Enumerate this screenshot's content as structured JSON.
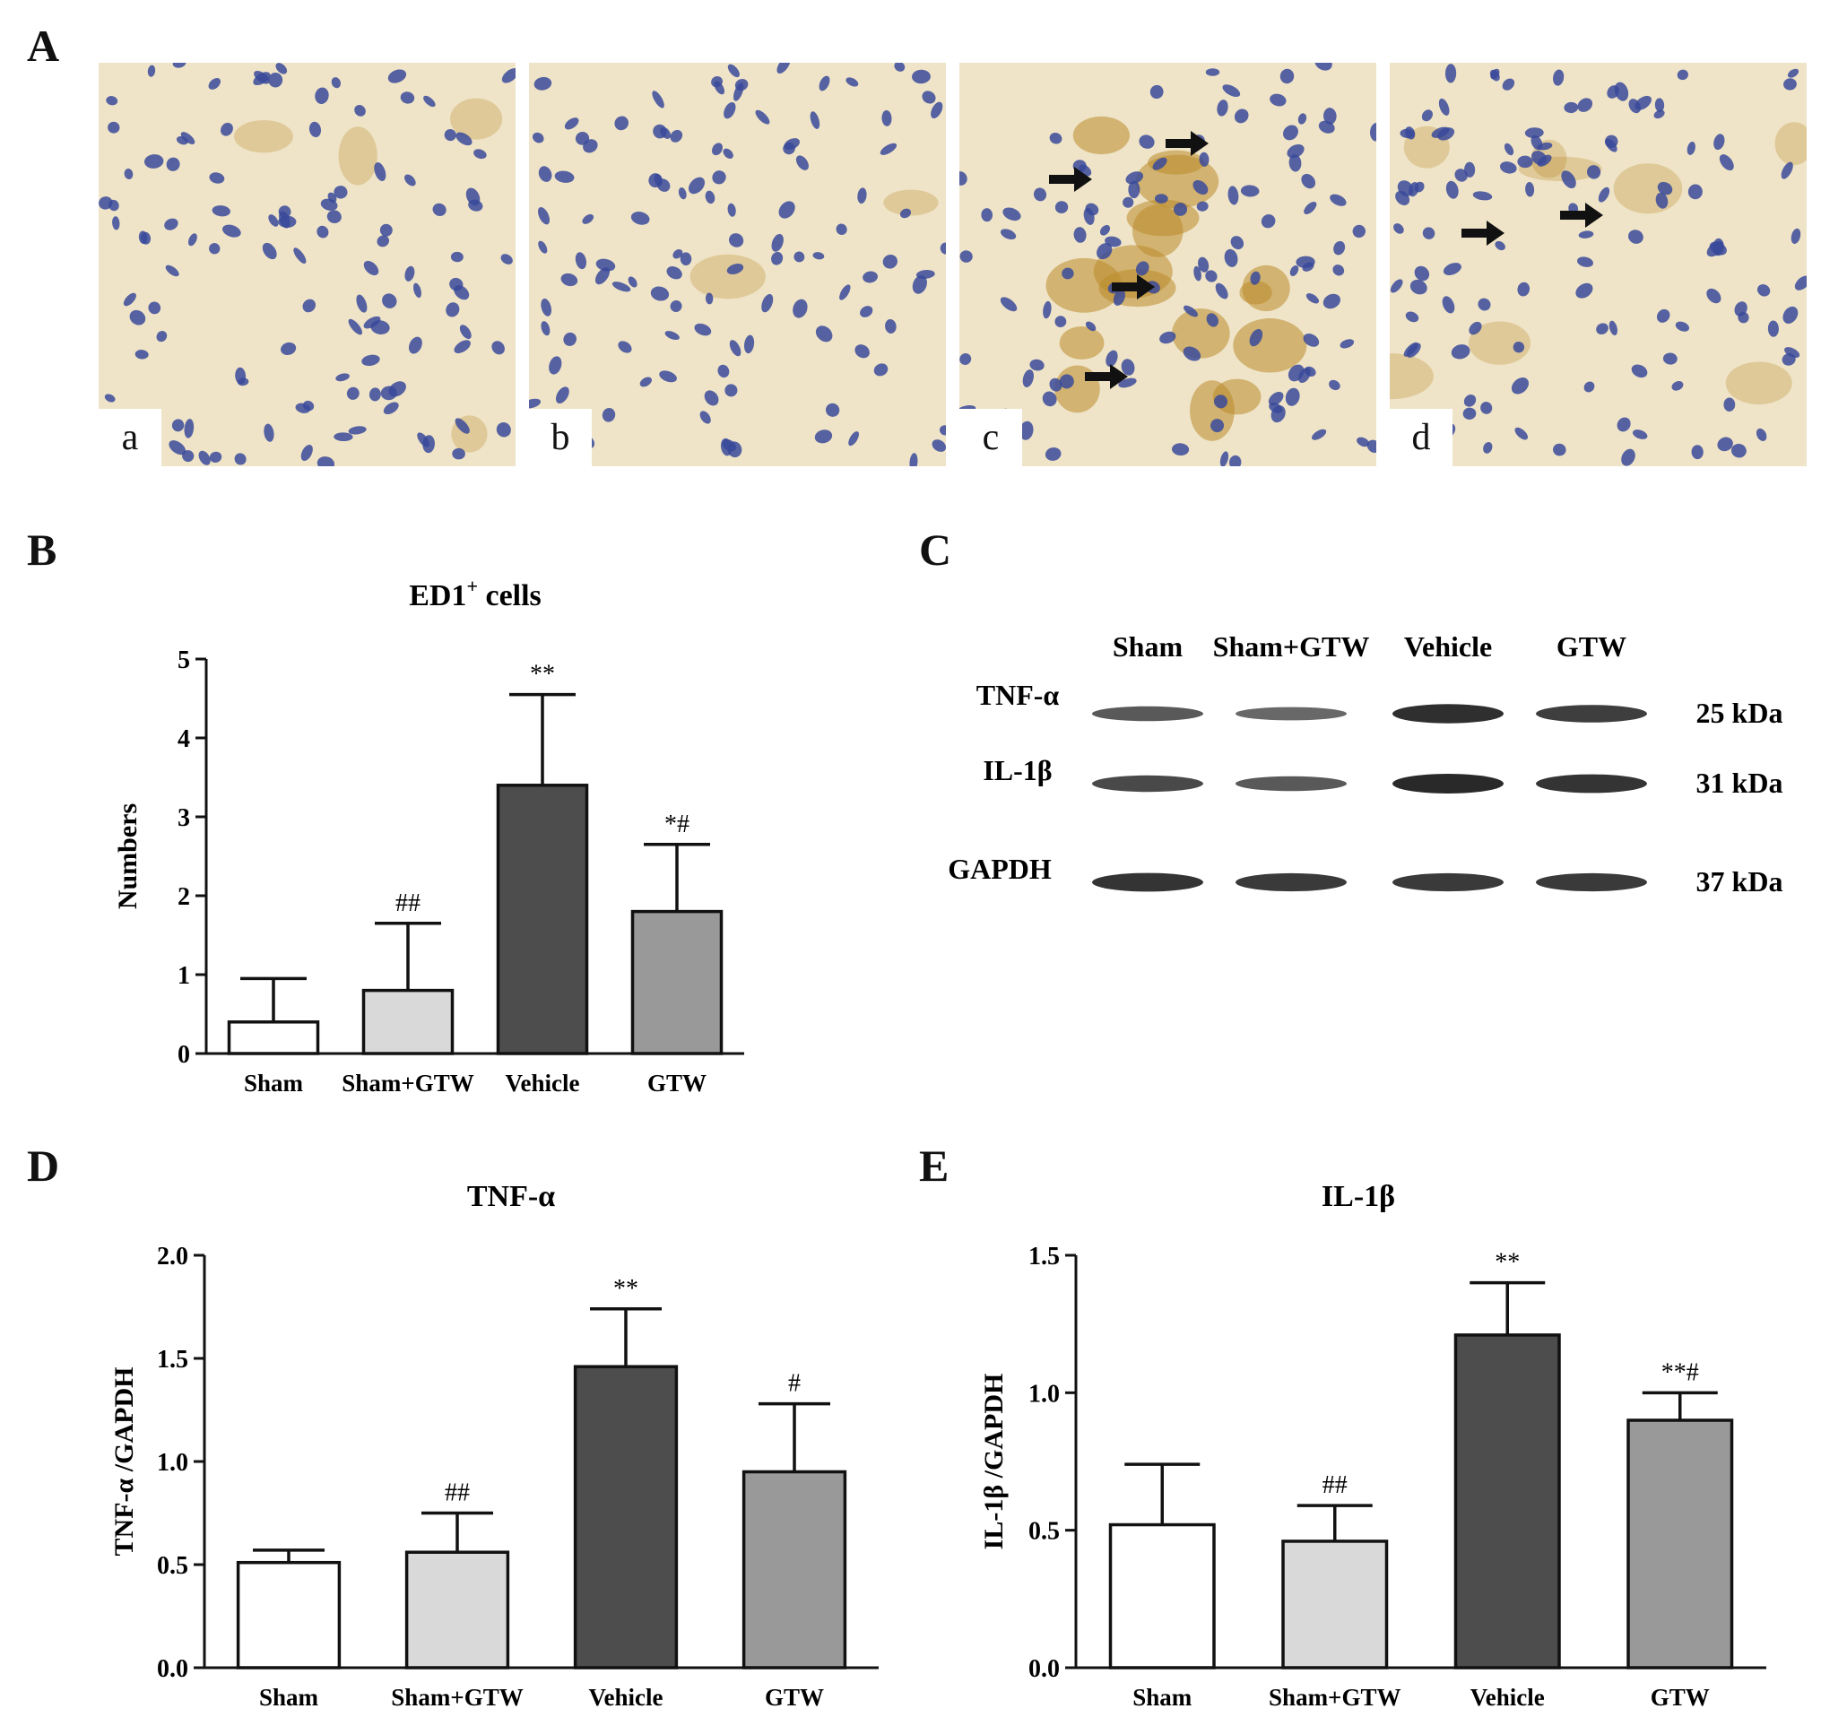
{
  "panels": {
    "A": {
      "letter": "A",
      "sublabels": [
        "a",
        "b",
        "c",
        "d"
      ],
      "arrows_per_image": [
        0,
        0,
        4,
        2
      ]
    },
    "B": {
      "letter": "B"
    },
    "C": {
      "letter": "C"
    },
    "D": {
      "letter": "D"
    },
    "E": {
      "letter": "E"
    }
  },
  "colors": {
    "Sham": "#ffffff",
    "Sham+GTW": "#d9d9d9",
    "Vehicle": "#4d4d4d",
    "GTW": "#999999",
    "tissue_background": "#efe4c8",
    "nucleus": "#3a4a9a",
    "stain": "#b98a2a"
  },
  "blot": {
    "lanes": [
      "Sham",
      "Sham+GTW",
      "Vehicle",
      "GTW"
    ],
    "rows": [
      {
        "protein": "TNF-α",
        "size": "25 kDa",
        "intensity": [
          0.55,
          0.4,
          0.95,
          0.8
        ]
      },
      {
        "protein": "IL-1β",
        "size": "31 kDa",
        "intensity": [
          0.7,
          0.55,
          1.0,
          0.9
        ]
      },
      {
        "protein": "GAPDH",
        "size": "37 kDa",
        "intensity": [
          0.9,
          0.85,
          0.85,
          0.85
        ]
      }
    ]
  },
  "chart_data": [
    {
      "type": "bar",
      "panel": "B",
      "title_main": "ED1",
      "title_sup": "+",
      "title_rest": " cells",
      "xlabel": "",
      "ylabel": "Numbers",
      "categories": [
        "Sham",
        "Sham+GTW",
        "Vehicle",
        "GTW"
      ],
      "values": [
        0.4,
        0.8,
        3.4,
        1.8
      ],
      "errors": [
        0.55,
        0.85,
        1.15,
        0.85
      ],
      "annotations": [
        "",
        "##",
        "**",
        "*#"
      ],
      "ylim": [
        0,
        5
      ],
      "yticks": [
        "0",
        "1",
        "2",
        "3",
        "4",
        "5"
      ],
      "grid": false,
      "legend": "none"
    },
    {
      "type": "bar",
      "panel": "D",
      "title": "TNF-α",
      "xlabel": "",
      "ylabel": "TNF-α /GAPDH",
      "categories": [
        "Sham",
        "Sham+GTW",
        "Vehicle",
        "GTW"
      ],
      "values": [
        0.51,
        0.56,
        1.46,
        0.95
      ],
      "errors": [
        0.06,
        0.19,
        0.28,
        0.33
      ],
      "annotations": [
        "",
        "##",
        "**",
        "#"
      ],
      "ylim": [
        0,
        2.0
      ],
      "yticks": [
        "0.0",
        "0.5",
        "1.0",
        "1.5",
        "2.0"
      ],
      "grid": false,
      "legend": "none"
    },
    {
      "type": "bar",
      "panel": "E",
      "title": "IL-1β",
      "xlabel": "",
      "ylabel": "IL-1β /GAPDH",
      "categories": [
        "Sham",
        "Sham+GTW",
        "Vehicle",
        "GTW"
      ],
      "values": [
        0.52,
        0.46,
        1.21,
        0.9
      ],
      "errors": [
        0.22,
        0.13,
        0.19,
        0.1
      ],
      "annotations": [
        "",
        "##",
        "**",
        "**#"
      ],
      "ylim": [
        0,
        1.5
      ],
      "yticks": [
        "0.0",
        "0.5",
        "1.0",
        "1.5"
      ],
      "grid": false,
      "legend": "none"
    }
  ]
}
